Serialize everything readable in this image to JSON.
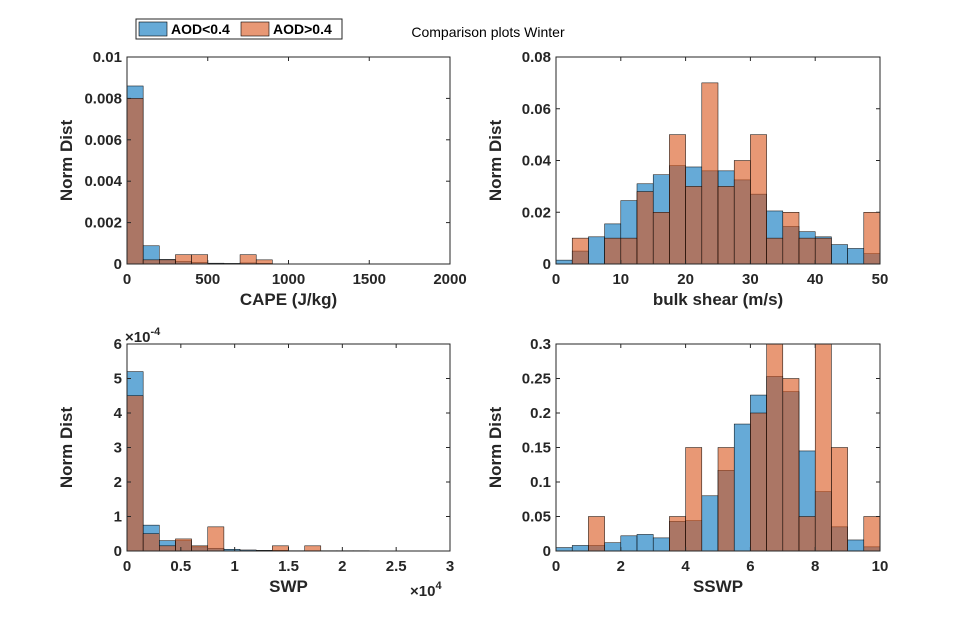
{
  "figure": {
    "title": "Comparison plots Winter"
  },
  "legend": {
    "placement": "top-left",
    "entries": [
      {
        "name": "AOD<0.4",
        "color": "#0072BD"
      },
      {
        "name": "AOD>0.4",
        "color": "#D95319"
      }
    ]
  },
  "chart_data": [
    {
      "type": "histogram",
      "xlabel": "CAPE (J/kg)",
      "ylabel": "Norm Dist",
      "xlim": [
        0,
        2000
      ],
      "ylim": [
        0,
        0.01
      ],
      "xticks": [
        "0",
        "500",
        "1000",
        "1500",
        "2000"
      ],
      "yticks": [
        "0",
        "0.002",
        "0.004",
        "0.006",
        "0.008",
        "0.01"
      ],
      "series": [
        {
          "name": "AOD<0.4",
          "bins": [
            [
              0,
              100,
              0.0086
            ],
            [
              100,
              200,
              0.00088
            ],
            [
              200,
              300,
              0.00022
            ],
            [
              300,
              400,
              0.00012
            ],
            [
              400,
              500,
              7e-05
            ],
            [
              500,
              600,
              4e-05
            ],
            [
              600,
              700,
              3e-05
            ],
            [
              700,
              800,
              5e-05
            ],
            [
              800,
              900,
              3e-05
            ],
            [
              900,
              1000,
              1e-05
            ],
            [
              1000,
              1100,
              1e-05
            ]
          ]
        },
        {
          "name": "AOD>0.4",
          "bins": [
            [
              0,
              100,
              0.008
            ],
            [
              100,
              200,
              0.0002
            ],
            [
              200,
              300,
              0.0002
            ],
            [
              300,
              400,
              0.00045
            ],
            [
              400,
              500,
              0.00045
            ],
            [
              700,
              800,
              0.00045
            ],
            [
              800,
              900,
              0.0002
            ]
          ]
        }
      ]
    },
    {
      "type": "histogram",
      "xlabel": "bulk shear (m/s)",
      "ylabel": "Norm Dist",
      "xlim": [
        0,
        50
      ],
      "ylim": [
        0,
        0.08
      ],
      "xticks": [
        "0",
        "10",
        "20",
        "30",
        "40",
        "50"
      ],
      "yticks": [
        "0",
        "0.02",
        "0.04",
        "0.06",
        "0.08"
      ],
      "series": [
        {
          "name": "AOD<0.4",
          "bins": [
            [
              0,
              2.5,
              0.0015
            ],
            [
              2.5,
              5,
              0.005
            ],
            [
              5,
              7.5,
              0.0105
            ],
            [
              7.5,
              10,
              0.0155
            ],
            [
              10,
              12.5,
              0.0245
            ],
            [
              12.5,
              15,
              0.031
            ],
            [
              15,
              17.5,
              0.0345
            ],
            [
              17.5,
              20,
              0.038
            ],
            [
              20,
              22.5,
              0.0375
            ],
            [
              22.5,
              25,
              0.036
            ],
            [
              25,
              27.5,
              0.036
            ],
            [
              27.5,
              30,
              0.0325
            ],
            [
              30,
              32.5,
              0.027
            ],
            [
              32.5,
              35,
              0.0205
            ],
            [
              35,
              37.5,
              0.0145
            ],
            [
              37.5,
              40,
              0.0125
            ],
            [
              40,
              42.5,
              0.0105
            ],
            [
              42.5,
              45,
              0.0075
            ],
            [
              45,
              47.5,
              0.006
            ],
            [
              47.5,
              50,
              0.004
            ]
          ]
        },
        {
          "name": "AOD>0.4",
          "bins": [
            [
              2.5,
              5,
              0.01
            ],
            [
              7.5,
              10,
              0.01
            ],
            [
              10,
              12.5,
              0.01
            ],
            [
              12.5,
              15,
              0.028
            ],
            [
              15,
              17.5,
              0.02
            ],
            [
              17.5,
              20,
              0.05
            ],
            [
              20,
              22.5,
              0.03
            ],
            [
              22.5,
              25,
              0.07
            ],
            [
              25,
              27.5,
              0.03
            ],
            [
              27.5,
              30,
              0.04
            ],
            [
              30,
              32.5,
              0.05
            ],
            [
              32.5,
              35,
              0.01
            ],
            [
              35,
              37.5,
              0.02
            ],
            [
              37.5,
              40,
              0.01
            ],
            [
              40,
              42.5,
              0.01
            ],
            [
              47.5,
              50,
              0.02
            ]
          ]
        }
      ]
    },
    {
      "type": "histogram",
      "xlabel": "SWP",
      "ylabel": "Norm Dist",
      "xlim": [
        0,
        3
      ],
      "ylim": [
        0,
        6
      ],
      "xscale_label": "×10",
      "xscale_exponent": "4",
      "yscale_label": "×10",
      "yscale_exponent": "-4",
      "xticks": [
        "0",
        "0.5",
        "1",
        "1.5",
        "2",
        "2.5",
        "3"
      ],
      "yticks": [
        "0",
        "1",
        "2",
        "3",
        "4",
        "5",
        "6"
      ],
      "series": [
        {
          "name": "AOD<0.4",
          "bins": [
            [
              0,
              0.15,
              5.2
            ],
            [
              0.15,
              0.3,
              0.75
            ],
            [
              0.3,
              0.45,
              0.3
            ],
            [
              0.45,
              0.6,
              0.3
            ],
            [
              0.6,
              0.75,
              0.12
            ],
            [
              0.75,
              0.9,
              0.08
            ],
            [
              0.9,
              1.05,
              0.05
            ],
            [
              1.05,
              1.2,
              0.03
            ],
            [
              1.2,
              1.35,
              0.02
            ],
            [
              1.35,
              1.5,
              0.02
            ],
            [
              1.5,
              1.65,
              0.01
            ],
            [
              1.65,
              1.8,
              0.01
            ],
            [
              1.8,
              1.95,
              0.01
            ],
            [
              1.95,
              2.1,
              0.01
            ],
            [
              2.1,
              2.25,
              0.01
            ],
            [
              2.25,
              2.4,
              0.005
            ],
            [
              2.4,
              2.55,
              0.005
            ],
            [
              2.55,
              2.7,
              0.005
            ]
          ]
        },
        {
          "name": "AOD>0.4",
          "bins": [
            [
              0,
              0.15,
              4.5
            ],
            [
              0.15,
              0.3,
              0.5
            ],
            [
              0.3,
              0.45,
              0.15
            ],
            [
              0.45,
              0.6,
              0.35
            ],
            [
              0.6,
              0.75,
              0.15
            ],
            [
              0.75,
              0.9,
              0.7
            ],
            [
              1.35,
              1.5,
              0.15
            ],
            [
              1.65,
              1.8,
              0.15
            ]
          ]
        }
      ]
    },
    {
      "type": "histogram",
      "xlabel": "SSWP",
      "ylabel": "Norm Dist",
      "xlim": [
        0,
        10
      ],
      "ylim": [
        0,
        0.3
      ],
      "xticks": [
        "0",
        "2",
        "4",
        "6",
        "8",
        "10"
      ],
      "yticks": [
        "0",
        "0.05",
        "0.1",
        "0.15",
        "0.2",
        "0.25",
        "0.3"
      ],
      "series": [
        {
          "name": "AOD<0.4",
          "bins": [
            [
              0,
              0.5,
              0.005
            ],
            [
              0.5,
              1,
              0.008
            ],
            [
              1,
              1.5,
              0.008
            ],
            [
              1.5,
              2,
              0.012
            ],
            [
              2,
              2.5,
              0.022
            ],
            [
              2.5,
              3,
              0.024
            ],
            [
              3,
              3.5,
              0.019
            ],
            [
              3.5,
              4,
              0.043
            ],
            [
              4,
              4.5,
              0.044
            ],
            [
              4.5,
              5,
              0.08
            ],
            [
              5,
              5.5,
              0.117
            ],
            [
              5.5,
              6,
              0.184
            ],
            [
              6,
              6.5,
              0.226
            ],
            [
              6.5,
              7,
              0.253
            ],
            [
              7,
              7.5,
              0.231
            ],
            [
              7.5,
              8,
              0.145
            ],
            [
              8,
              8.5,
              0.086
            ],
            [
              8.5,
              9,
              0.035
            ],
            [
              9,
              9.5,
              0.016
            ],
            [
              9.5,
              10,
              0.006
            ]
          ]
        },
        {
          "name": "AOD>0.4",
          "bins": [
            [
              1,
              1.5,
              0.05
            ],
            [
              3.5,
              4,
              0.05
            ],
            [
              4,
              4.5,
              0.15
            ],
            [
              5,
              5.5,
              0.15
            ],
            [
              6,
              6.5,
              0.2
            ],
            [
              6.5,
              7,
              0.3
            ],
            [
              7,
              7.5,
              0.25
            ],
            [
              7.5,
              8,
              0.05
            ],
            [
              8,
              8.5,
              0.3
            ],
            [
              8.5,
              9,
              0.15
            ],
            [
              9.5,
              10,
              0.05
            ]
          ]
        }
      ]
    }
  ]
}
